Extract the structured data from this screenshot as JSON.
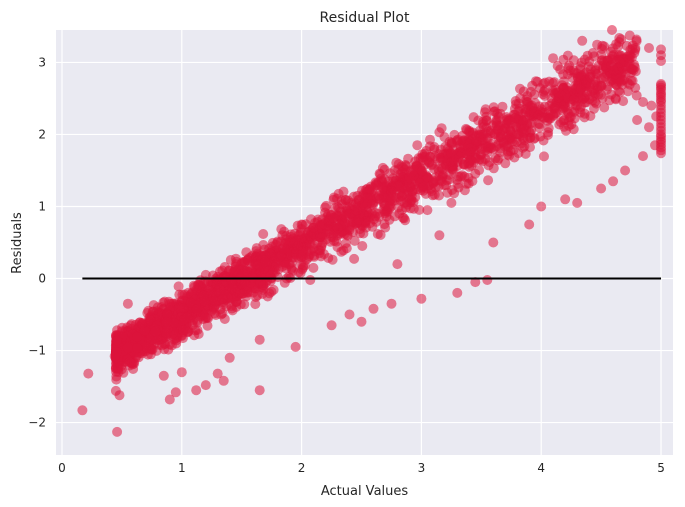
{
  "chart_data": {
    "type": "scatter",
    "title": "Residual Plot",
    "xlabel": "Actual Values",
    "ylabel": "Residuals",
    "xlim": [
      -0.05,
      5.1
    ],
    "ylim": [
      -2.45,
      3.45
    ],
    "xticks": [
      0,
      1,
      2,
      3,
      4,
      5
    ],
    "yticks": [
      -2,
      -1,
      0,
      1,
      2,
      3
    ],
    "grid": true,
    "background": "#EAEAF2",
    "gridColor": "#FFFFFF",
    "pointColor": "#DC143C",
    "pointOpacity": 0.55,
    "reference_line": {
      "y": 0,
      "x_range": [
        0.17,
        5.0
      ],
      "color": "#000000"
    },
    "trend": {
      "slope": 0.95,
      "intercept": -1.45
    },
    "points": [
      [
        0.17,
        -1.83
      ],
      [
        0.22,
        -1.32
      ],
      [
        0.46,
        -2.13
      ],
      [
        0.45,
        -1.56
      ],
      [
        0.48,
        -1.62
      ],
      [
        0.44,
        -1.08
      ],
      [
        0.9,
        -1.68
      ],
      [
        0.95,
        -1.58
      ],
      [
        1.12,
        -1.55
      ],
      [
        1.2,
        -1.48
      ],
      [
        1.3,
        -1.32
      ],
      [
        1.35,
        -1.42
      ],
      [
        1.65,
        -1.55
      ],
      [
        0.55,
        -0.35
      ],
      [
        0.72,
        -0.45
      ],
      [
        0.8,
        -0.4
      ],
      [
        1.1,
        -0.1
      ],
      [
        1.2,
        0.05
      ],
      [
        1.5,
        0.12
      ],
      [
        1.62,
        0.38
      ],
      [
        1.55,
        0.25
      ],
      [
        2.0,
        0.75
      ],
      [
        2.1,
        0.62
      ],
      [
        2.3,
        0.6
      ],
      [
        2.4,
        0.9
      ],
      [
        1.85,
        0.42
      ],
      [
        2.25,
        -0.65
      ],
      [
        2.5,
        -0.6
      ],
      [
        2.75,
        -0.35
      ],
      [
        3.0,
        -0.28
      ],
      [
        3.3,
        -0.2
      ],
      [
        3.45,
        -0.05
      ],
      [
        3.55,
        -0.02
      ],
      [
        2.9,
        1.4
      ],
      [
        3.1,
        1.35
      ],
      [
        3.25,
        1.05
      ],
      [
        3.5,
        1.65
      ],
      [
        3.25,
        1.62
      ],
      [
        3.4,
        1.55
      ],
      [
        3.7,
        1.6
      ],
      [
        3.85,
        1.95
      ],
      [
        3.55,
        1.75
      ],
      [
        4.0,
        2.35
      ],
      [
        4.2,
        2.55
      ],
      [
        4.3,
        2.4
      ],
      [
        4.45,
        2.45
      ],
      [
        4.5,
        2.55
      ],
      [
        4.62,
        2.5
      ],
      [
        4.75,
        2.75
      ],
      [
        4.9,
        3.2
      ],
      [
        4.2,
        1.1
      ],
      [
        4.3,
        1.05
      ],
      [
        4.5,
        1.25
      ],
      [
        4.6,
        1.35
      ],
      [
        4.7,
        1.5
      ],
      [
        3.6,
        0.5
      ],
      [
        3.9,
        0.75
      ],
      [
        4.0,
        1.0
      ],
      [
        2.6,
        -0.42
      ],
      [
        2.4,
        -0.5
      ],
      [
        1.95,
        -0.95
      ],
      [
        1.65,
        -0.85
      ],
      [
        1.4,
        -1.1
      ],
      [
        1.0,
        -1.3
      ],
      [
        0.85,
        -1.35
      ],
      [
        4.9,
        2.1
      ],
      [
        4.95,
        1.85
      ],
      [
        4.85,
        1.7
      ],
      [
        4.8,
        2.2
      ],
      [
        4.85,
        2.45
      ],
      [
        4.92,
        2.4
      ],
      [
        4.96,
        2.25
      ],
      [
        3.05,
        0.95
      ],
      [
        3.15,
        0.6
      ],
      [
        2.8,
        0.2
      ]
    ],
    "column_points": {
      "x": 5.0,
      "y": [
        3.18,
        3.1,
        3.02,
        2.7,
        2.68,
        2.65,
        2.62,
        2.58,
        2.55,
        2.52,
        2.48,
        2.45,
        2.4,
        2.35,
        2.3,
        2.25,
        2.2,
        2.15,
        2.1,
        2.05,
        2.0,
        1.97,
        1.93,
        1.9,
        1.86,
        1.82,
        1.78,
        1.74
      ]
    },
    "band_samples": 2600,
    "band_x_range": [
      0.45,
      4.8
    ]
  }
}
